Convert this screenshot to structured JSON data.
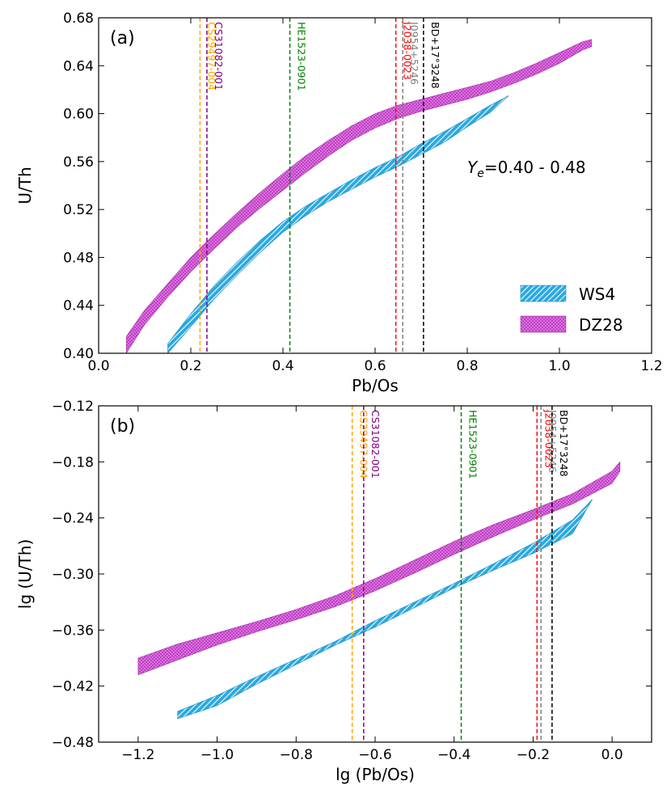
{
  "colors": {
    "ws4_fill": "#2aa8df",
    "ws4_hatch": "#e6f6fd",
    "dz28_fill": "#c33fc8",
    "dz28_dot": "#f1c6f3",
    "star_colors": {
      "CS29497-004": "#ffa500",
      "CS31082-001": "#800080",
      "HE1523-0901": "#008000",
      "J2038-0023": "#ff0000",
      "J0954+5246": "#808080",
      "BD+17°3248": "#000000"
    }
  },
  "chart_data": [
    {
      "id": "a",
      "type": "area",
      "panel_label": "(a)",
      "xlabel": "Pb/Os",
      "ylabel": "U/Th",
      "xlim": [
        0.0,
        1.2
      ],
      "ylim": [
        0.4,
        0.68
      ],
      "xticks": [
        0.0,
        0.2,
        0.4,
        0.6,
        0.8,
        1.0,
        1.2
      ],
      "xtick_labels": [
        "0.0",
        "0.2",
        "0.4",
        "0.6",
        "0.8",
        "1.0",
        "1.2"
      ],
      "yticks": [
        0.4,
        0.44,
        0.48,
        0.52,
        0.56,
        0.6,
        0.64,
        0.68
      ],
      "ytick_labels": [
        "0.40",
        "0.44",
        "0.48",
        "0.52",
        "0.56",
        "0.60",
        "0.64",
        "0.68"
      ],
      "annotation": {
        "prefix": "Y",
        "subscript": "e",
        "text": "=0.40 - 0.48"
      },
      "legend": {
        "position": "lower-right",
        "entries": [
          "WS4",
          "DZ28"
        ]
      },
      "grid": false,
      "series": [
        {
          "name": "WS4",
          "x": [
            0.15,
            0.2,
            0.25,
            0.3,
            0.35,
            0.4,
            0.45,
            0.5,
            0.55,
            0.6,
            0.65,
            0.7,
            0.75,
            0.8,
            0.85,
            0.89
          ],
          "upper": [
            0.408,
            0.433,
            0.456,
            0.476,
            0.494,
            0.51,
            0.523,
            0.534,
            0.545,
            0.555,
            0.564,
            0.575,
            0.585,
            0.596,
            0.607,
            0.615
          ],
          "lower": [
            0.4,
            0.422,
            0.445,
            0.465,
            0.484,
            0.501,
            0.515,
            0.527,
            0.537,
            0.547,
            0.556,
            0.566,
            0.576,
            0.589,
            0.601,
            0.615
          ]
        },
        {
          "name": "DZ28",
          "x": [
            0.06,
            0.1,
            0.15,
            0.2,
            0.25,
            0.3,
            0.35,
            0.4,
            0.45,
            0.5,
            0.55,
            0.6,
            0.65,
            0.7,
            0.75,
            0.8,
            0.85,
            0.9,
            0.95,
            1.0,
            1.05,
            1.07
          ],
          "upper": [
            0.414,
            0.436,
            0.458,
            0.48,
            0.499,
            0.517,
            0.534,
            0.55,
            0.565,
            0.578,
            0.59,
            0.6,
            0.607,
            0.612,
            0.617,
            0.622,
            0.627,
            0.634,
            0.642,
            0.651,
            0.66,
            0.662
          ],
          "lower": [
            0.4,
            0.424,
            0.447,
            0.468,
            0.487,
            0.505,
            0.521,
            0.536,
            0.551,
            0.565,
            0.578,
            0.588,
            0.596,
            0.602,
            0.607,
            0.612,
            0.618,
            0.625,
            0.633,
            0.642,
            0.653,
            0.656
          ]
        }
      ],
      "vlines": [
        {
          "label": "CS29497-004",
          "x": 0.22
        },
        {
          "label": "CS31082-001",
          "x": 0.235
        },
        {
          "label": "HE1523-0901",
          "x": 0.415
        },
        {
          "label": "J2038-0023",
          "x": 0.645
        },
        {
          "label": "J0954+5246",
          "x": 0.66
        },
        {
          "label": "BD+17°3248",
          "x": 0.705
        }
      ]
    },
    {
      "id": "b",
      "type": "area",
      "panel_label": "(b)",
      "xlabel": "lg (Pb/Os)",
      "ylabel": "lg (U/Th)",
      "xlim": [
        -1.3,
        0.1
      ],
      "ylim": [
        -0.48,
        -0.12
      ],
      "xticks": [
        -1.2,
        -1.0,
        -0.8,
        -0.6,
        -0.4,
        -0.2,
        0.0
      ],
      "xtick_labels": [
        "−1.2",
        "−1.0",
        "−0.8",
        "−0.6",
        "−0.4",
        "−0.2",
        "0.0"
      ],
      "yticks": [
        -0.48,
        -0.42,
        -0.36,
        -0.3,
        -0.24,
        -0.18,
        -0.12
      ],
      "ytick_labels": [
        "−0.48",
        "−0.42",
        "−0.36",
        "−0.30",
        "−0.24",
        "−0.18",
        "−0.12"
      ],
      "grid": false,
      "series": [
        {
          "name": "WS4",
          "x": [
            -1.1,
            -1.0,
            -0.9,
            -0.8,
            -0.7,
            -0.6,
            -0.5,
            -0.4,
            -0.3,
            -0.2,
            -0.1,
            -0.05
          ],
          "upper": [
            -0.447,
            -0.43,
            -0.41,
            -0.391,
            -0.372,
            -0.35,
            -0.33,
            -0.31,
            -0.289,
            -0.267,
            -0.242,
            -0.22
          ],
          "lower": [
            -0.455,
            -0.441,
            -0.418,
            -0.397,
            -0.376,
            -0.357,
            -0.336,
            -0.315,
            -0.296,
            -0.278,
            -0.257,
            -0.22
          ]
        },
        {
          "name": "DZ28",
          "x": [
            -1.2,
            -1.1,
            -1.0,
            -0.9,
            -0.8,
            -0.7,
            -0.6,
            -0.5,
            -0.4,
            -0.3,
            -0.2,
            -0.1,
            0.0,
            0.02
          ],
          "upper": [
            -0.39,
            -0.375,
            -0.363,
            -0.351,
            -0.338,
            -0.323,
            -0.305,
            -0.285,
            -0.265,
            -0.247,
            -0.231,
            -0.214,
            -0.19,
            -0.18
          ],
          "lower": [
            -0.408,
            -0.392,
            -0.376,
            -0.362,
            -0.349,
            -0.335,
            -0.318,
            -0.299,
            -0.279,
            -0.26,
            -0.242,
            -0.225,
            -0.203,
            -0.19
          ]
        }
      ],
      "vlines": [
        {
          "label": "CS29497-004",
          "x": -0.658
        },
        {
          "label": "CS31082-001",
          "x": -0.629
        },
        {
          "label": "HE1523-0901",
          "x": -0.382
        },
        {
          "label": "J2038-0023",
          "x": -0.19
        },
        {
          "label": "J0954+5246",
          "x": -0.18
        },
        {
          "label": "BD+17°3248",
          "x": -0.152
        }
      ]
    }
  ]
}
